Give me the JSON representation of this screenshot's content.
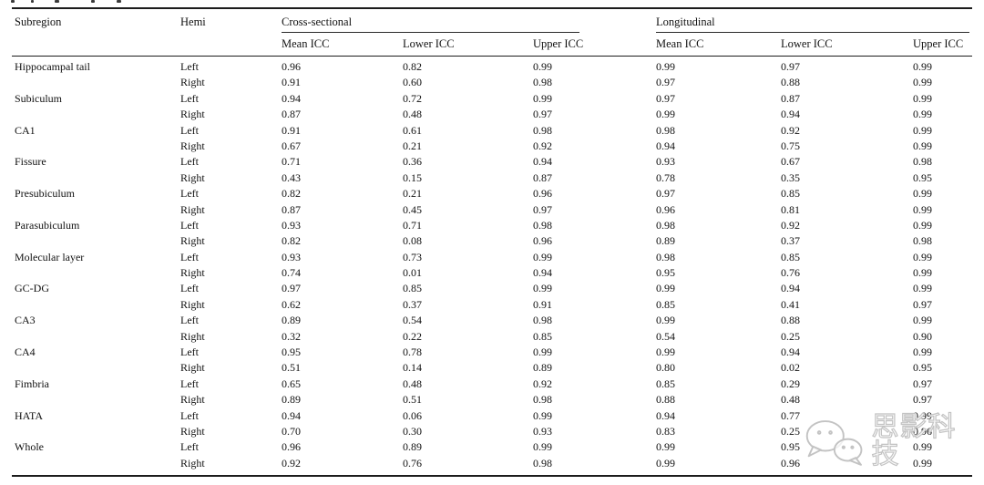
{
  "table": {
    "header": {
      "subregion": "Subregion",
      "hemi": "Hemi",
      "groups": [
        {
          "label": "Cross-sectional"
        },
        {
          "label": "Longitudinal"
        }
      ],
      "sub": [
        "Mean ICC",
        "Lower ICC",
        "Upper ICC",
        "Mean ICC",
        "Lower ICC",
        "Upper ICC"
      ]
    },
    "rows": [
      {
        "subregion": "Hippocampal tail",
        "hemi": "Left",
        "values": [
          "0.96",
          "0.82",
          "0.99",
          "0.99",
          "0.97",
          "0.99"
        ]
      },
      {
        "subregion": "",
        "hemi": "Right",
        "values": [
          "0.91",
          "0.60",
          "0.98",
          "0.97",
          "0.88",
          "0.99"
        ]
      },
      {
        "subregion": "Subiculum",
        "hemi": "Left",
        "values": [
          "0.94",
          "0.72",
          "0.99",
          "0.97",
          "0.87",
          "0.99"
        ]
      },
      {
        "subregion": "",
        "hemi": "Right",
        "values": [
          "0.87",
          "0.48",
          "0.97",
          "0.99",
          "0.94",
          "0.99"
        ]
      },
      {
        "subregion": "CA1",
        "hemi": "Left",
        "values": [
          "0.91",
          "0.61",
          "0.98",
          "0.98",
          "0.92",
          "0.99"
        ]
      },
      {
        "subregion": "",
        "hemi": "Right",
        "values": [
          "0.67",
          "0.21",
          "0.92",
          "0.94",
          "0.75",
          "0.99"
        ]
      },
      {
        "subregion": "Fissure",
        "hemi": "Left",
        "values": [
          "0.71",
          "0.36",
          "0.94",
          "0.93",
          "0.67",
          "0.98"
        ]
      },
      {
        "subregion": "",
        "hemi": "Right",
        "values": [
          "0.43",
          "0.15",
          "0.87",
          "0.78",
          "0.35",
          "0.95"
        ]
      },
      {
        "subregion": "Presubiculum",
        "hemi": "Left",
        "values": [
          "0.82",
          "0.21",
          "0.96",
          "0.97",
          "0.85",
          "0.99"
        ]
      },
      {
        "subregion": "",
        "hemi": "Right",
        "values": [
          "0.87",
          "0.45",
          "0.97",
          "0.96",
          "0.81",
          "0.99"
        ]
      },
      {
        "subregion": "Parasubiculum",
        "hemi": "Left",
        "values": [
          "0.93",
          "0.71",
          "0.98",
          "0.98",
          "0.92",
          "0.99"
        ]
      },
      {
        "subregion": "",
        "hemi": "Right",
        "values": [
          "0.82",
          "0.08",
          "0.96",
          "0.89",
          "0.37",
          "0.98"
        ]
      },
      {
        "subregion": "Molecular layer",
        "hemi": "Left",
        "values": [
          "0.93",
          "0.73",
          "0.99",
          "0.98",
          "0.85",
          "0.99"
        ]
      },
      {
        "subregion": "",
        "hemi": "Right",
        "values": [
          "0.74",
          "0.01",
          "0.94",
          "0.95",
          "0.76",
          "0.99"
        ]
      },
      {
        "subregion": "GC-DG",
        "hemi": "Left",
        "values": [
          "0.97",
          "0.85",
          "0.99",
          "0.99",
          "0.94",
          "0.99"
        ]
      },
      {
        "subregion": "",
        "hemi": "Right",
        "values": [
          "0.62",
          "0.37",
          "0.91",
          "0.85",
          "0.41",
          "0.97"
        ]
      },
      {
        "subregion": "CA3",
        "hemi": "Left",
        "values": [
          "0.89",
          "0.54",
          "0.98",
          "0.99",
          "0.88",
          "0.99"
        ]
      },
      {
        "subregion": "",
        "hemi": "Right",
        "values": [
          "0.32",
          "0.22",
          "0.85",
          "0.54",
          "0.25",
          "0.90"
        ]
      },
      {
        "subregion": "CA4",
        "hemi": "Left",
        "values": [
          "0.95",
          "0.78",
          "0.99",
          "0.99",
          "0.94",
          "0.99"
        ]
      },
      {
        "subregion": "",
        "hemi": "Right",
        "values": [
          "0.51",
          "0.14",
          "0.89",
          "0.80",
          "0.02",
          "0.95"
        ]
      },
      {
        "subregion": "Fimbria",
        "hemi": "Left",
        "values": [
          "0.65",
          "0.48",
          "0.92",
          "0.85",
          "0.29",
          "0.97"
        ]
      },
      {
        "subregion": "",
        "hemi": "Right",
        "values": [
          "0.89",
          "0.51",
          "0.98",
          "0.88",
          "0.48",
          "0.97"
        ]
      },
      {
        "subregion": "HATA",
        "hemi": "Left",
        "values": [
          "0.94",
          "0.06",
          "0.99",
          "0.94",
          "0.77",
          "0.99"
        ]
      },
      {
        "subregion": "",
        "hemi": "Right",
        "values": [
          "0.70",
          "0.30",
          "0.93",
          "0.83",
          "0.25",
          "0.96"
        ]
      },
      {
        "subregion": "Whole",
        "hemi": "Left",
        "values": [
          "0.96",
          "0.89",
          "0.99",
          "0.99",
          "0.95",
          "0.99"
        ]
      },
      {
        "subregion": "",
        "hemi": "Right",
        "values": [
          "0.92",
          "0.76",
          "0.98",
          "0.99",
          "0.96",
          "0.99"
        ]
      }
    ]
  },
  "watermark": {
    "text": "思影科技",
    "stroke_color": "#c3c3c3"
  }
}
